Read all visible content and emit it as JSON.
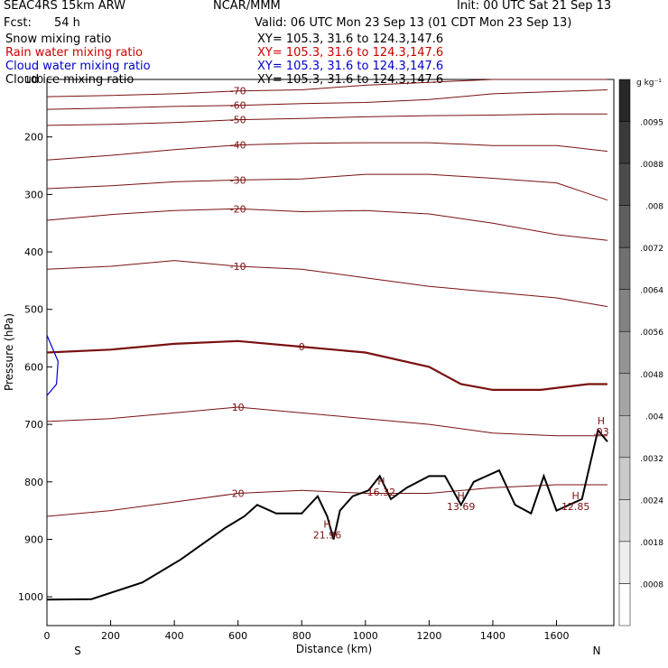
{
  "header": {
    "model": "SEAC4RS 15km ARW",
    "center": "NCAR/MMM",
    "init": "Init: 00 UTC Sat 21 Sep 13",
    "fcst_label": "Fcst:",
    "fcst_value": "54 h",
    "valid": "Valid: 06 UTC Mon 23 Sep 13 (01 CDT Mon 23 Sep 13)"
  },
  "fields": [
    {
      "name": "Snow mixing ratio",
      "xy": "XY= 105.3, 31.6 to 124.3,147.6",
      "color": "#000000"
    },
    {
      "name": "Rain water mixing ratio",
      "xy": "XY= 105.3, 31.6 to 124.3,147.6",
      "color": "#cc0000"
    },
    {
      "name": "Cloud water mixing ratio",
      "xy": "XY= 105.3, 31.6 to 124.3,147.6",
      "color": "#0000cc"
    },
    {
      "name": "Cloud ice mixing ratio",
      "xy": "XY= 105.3, 31.6 to 124.3,147.6",
      "color": "#000000"
    }
  ],
  "colors": {
    "isotherm": "#7a1010",
    "freezing": "#7a1010",
    "terrain": "#000000",
    "cloud": "#0000cc",
    "axis": "#000000"
  },
  "chart_data": {
    "type": "contour-cross-section",
    "xlabel": "Distance (km)",
    "ylabel": "Pressure (hPa)",
    "xlim": [
      0,
      1780
    ],
    "ylim": [
      1050,
      100
    ],
    "x_ticks": [
      "0",
      "200",
      "400",
      "600",
      "800",
      "1000",
      "1200",
      "1400",
      "1600"
    ],
    "y_ticks": [
      "100",
      "200",
      "300",
      "400",
      "500",
      "600",
      "700",
      "800",
      "900",
      "1000"
    ],
    "x_end_labels": {
      "left": "S",
      "right": "N"
    },
    "colorbar": {
      "unit": "g kg⁻¹",
      "labels": [
        ".0095",
        ".0088",
        ".008",
        ".0072",
        ".0064",
        ".0056",
        ".0048",
        ".004",
        ".0032",
        ".0024",
        ".0018",
        ".0008"
      ]
    },
    "terrain": [
      [
        0,
        1005
      ],
      [
        140,
        1004
      ],
      [
        300,
        975
      ],
      [
        420,
        935
      ],
      [
        560,
        880
      ],
      [
        620,
        860
      ],
      [
        660,
        840
      ],
      [
        720,
        855
      ],
      [
        800,
        855
      ],
      [
        850,
        825
      ],
      [
        880,
        860
      ],
      [
        900,
        900
      ],
      [
        920,
        850
      ],
      [
        960,
        825
      ],
      [
        1010,
        815
      ],
      [
        1045,
        790
      ],
      [
        1080,
        830
      ],
      [
        1130,
        810
      ],
      [
        1200,
        790
      ],
      [
        1250,
        790
      ],
      [
        1300,
        840
      ],
      [
        1340,
        800
      ],
      [
        1380,
        790
      ],
      [
        1420,
        780
      ],
      [
        1470,
        840
      ],
      [
        1520,
        855
      ],
      [
        1560,
        790
      ],
      [
        1600,
        850
      ],
      [
        1680,
        830
      ],
      [
        1730,
        710
      ],
      [
        1760,
        730
      ]
    ],
    "isotherms": [
      {
        "label": "-70",
        "points": [
          [
            0,
            130
          ],
          [
            200,
            128
          ],
          [
            400,
            125
          ],
          [
            600,
            120
          ],
          [
            800,
            118
          ],
          [
            1000,
            110
          ],
          [
            1200,
            105
          ],
          [
            1400,
            100
          ],
          [
            1760,
            100
          ]
        ]
      },
      {
        "label": "-60",
        "points": [
          [
            0,
            152
          ],
          [
            200,
            150
          ],
          [
            400,
            147
          ],
          [
            600,
            145
          ],
          [
            800,
            142
          ],
          [
            1000,
            140
          ],
          [
            1200,
            135
          ],
          [
            1400,
            125
          ],
          [
            1760,
            118
          ]
        ]
      },
      {
        "label": "-50",
        "points": [
          [
            0,
            180
          ],
          [
            200,
            178
          ],
          [
            400,
            175
          ],
          [
            600,
            170
          ],
          [
            800,
            168
          ],
          [
            1000,
            165
          ],
          [
            1200,
            163
          ],
          [
            1400,
            162
          ],
          [
            1600,
            160
          ],
          [
            1760,
            160
          ]
        ]
      },
      {
        "label": "-40",
        "points": [
          [
            0,
            240
          ],
          [
            200,
            232
          ],
          [
            400,
            222
          ],
          [
            600,
            214
          ],
          [
            800,
            211
          ],
          [
            1000,
            210
          ],
          [
            1200,
            210
          ],
          [
            1400,
            215
          ],
          [
            1600,
            215
          ],
          [
            1760,
            225
          ]
        ]
      },
      {
        "label": "-30",
        "points": [
          [
            0,
            290
          ],
          [
            200,
            285
          ],
          [
            400,
            278
          ],
          [
            600,
            275
          ],
          [
            800,
            273
          ],
          [
            1000,
            265
          ],
          [
            1200,
            265
          ],
          [
            1400,
            272
          ],
          [
            1600,
            280
          ],
          [
            1760,
            310
          ]
        ]
      },
      {
        "label": "-20",
        "points": [
          [
            0,
            345
          ],
          [
            200,
            335
          ],
          [
            400,
            328
          ],
          [
            600,
            325
          ],
          [
            800,
            330
          ],
          [
            1000,
            328
          ],
          [
            1200,
            334
          ],
          [
            1400,
            350
          ],
          [
            1600,
            370
          ],
          [
            1760,
            380
          ]
        ]
      },
      {
        "label": "-10",
        "points": [
          [
            0,
            430
          ],
          [
            200,
            425
          ],
          [
            400,
            415
          ],
          [
            600,
            425
          ],
          [
            800,
            430
          ],
          [
            1000,
            445
          ],
          [
            1200,
            460
          ],
          [
            1400,
            470
          ],
          [
            1600,
            480
          ],
          [
            1760,
            495
          ]
        ]
      },
      {
        "label": "0",
        "points": [
          [
            0,
            575
          ],
          [
            200,
            570
          ],
          [
            400,
            560
          ],
          [
            600,
            555
          ],
          [
            800,
            565
          ],
          [
            1000,
            575
          ],
          [
            1200,
            600
          ],
          [
            1300,
            630
          ],
          [
            1400,
            640
          ],
          [
            1550,
            640
          ],
          [
            1700,
            630
          ],
          [
            1760,
            630
          ]
        ]
      },
      {
        "label": "10",
        "points": [
          [
            0,
            695
          ],
          [
            200,
            690
          ],
          [
            400,
            680
          ],
          [
            600,
            670
          ],
          [
            800,
            680
          ],
          [
            1000,
            690
          ],
          [
            1200,
            700
          ],
          [
            1400,
            715
          ],
          [
            1600,
            720
          ],
          [
            1760,
            720
          ]
        ]
      },
      {
        "label": "20",
        "points": [
          [
            0,
            860
          ],
          [
            200,
            850
          ],
          [
            400,
            835
          ],
          [
            600,
            820
          ],
          [
            800,
            815
          ],
          [
            1000,
            820
          ],
          [
            1200,
            820
          ],
          [
            1400,
            810
          ],
          [
            1600,
            805
          ],
          [
            1760,
            805
          ]
        ]
      }
    ],
    "cloud_water": [
      [
        0,
        545
      ],
      [
        35,
        590
      ],
      [
        30,
        630
      ],
      [
        0,
        650
      ]
    ],
    "highs": [
      {
        "x": 880,
        "p": 880,
        "label": "H",
        "value": "21.96"
      },
      {
        "x": 1050,
        "p": 805,
        "label": "H",
        "value": "16.32"
      },
      {
        "x": 1300,
        "p": 830,
        "label": "H",
        "value": "13.69"
      },
      {
        "x": 1660,
        "p": 830,
        "label": "H",
        "value": "12.85"
      },
      {
        "x": 1740,
        "p": 700,
        "label": "H",
        "value": ".03"
      }
    ]
  }
}
